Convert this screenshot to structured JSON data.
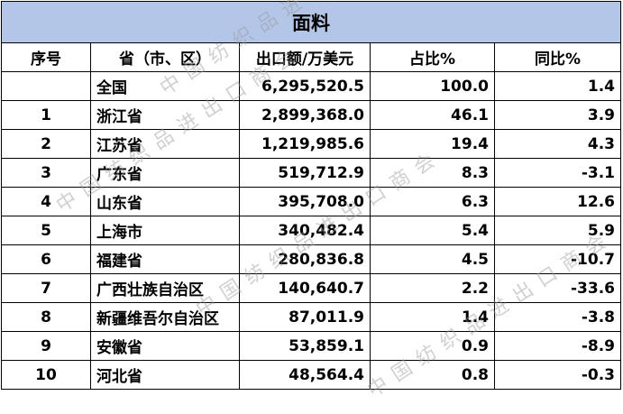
{
  "table": {
    "title": "面料",
    "columns": [
      "序号",
      "省（市、区）",
      "出口额/万美元",
      "占比%",
      "同比%"
    ],
    "rows": [
      {
        "region": "全国",
        "export": "6,295,520.5",
        "share": "100.0",
        "yoy": "1.4"
      },
      {
        "rank": "1",
        "region": "浙江省",
        "export": "2,899,368.0",
        "share": "46.1",
        "yoy": "3.9"
      },
      {
        "rank": "2",
        "region": "江苏省",
        "export": "1,219,985.6",
        "share": "19.4",
        "yoy": "4.3"
      },
      {
        "rank": "3",
        "region": "广东省",
        "export": "519,712.9",
        "share": "8.3",
        "yoy": "-3.1"
      },
      {
        "rank": "4",
        "region": "山东省",
        "export": "395,708.0",
        "share": "6.3",
        "yoy": "12.6"
      },
      {
        "rank": "5",
        "region": "上海市",
        "export": "340,482.4",
        "share": "5.4",
        "yoy": "5.9"
      },
      {
        "rank": "6",
        "region": "福建省",
        "export": "280,836.8",
        "share": "4.5",
        "yoy": "-10.7"
      },
      {
        "rank": "7",
        "region": "广西壮族自治区",
        "export": "140,640.7",
        "share": "2.2",
        "yoy": "-33.6"
      },
      {
        "rank": "8",
        "region": "新疆维吾尔自治区",
        "export": "87,011.9",
        "share": "1.4",
        "yoy": "-3.8"
      },
      {
        "rank": "9",
        "region": "安徽省",
        "export": "53,859.1",
        "share": "0.9",
        "yoy": "-8.9"
      },
      {
        "rank": "10",
        "region": "河北省",
        "export": "48,564.4",
        "share": "0.8",
        "yoy": "-0.3"
      }
    ]
  },
  "watermark": "中国纺织品进出口商会"
}
